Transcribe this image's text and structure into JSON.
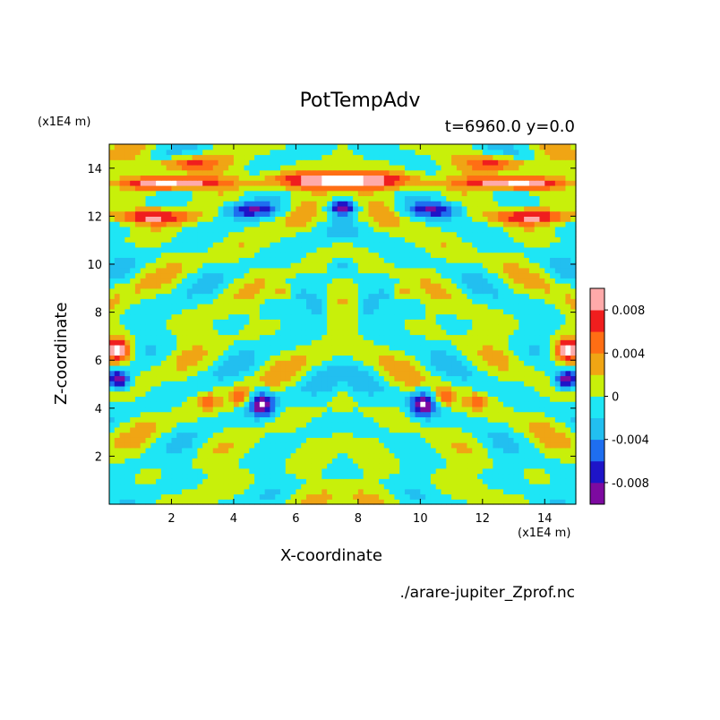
{
  "chart_data": {
    "type": "heatmap",
    "title": "PotTempAdv",
    "subtitle": "t=6960.0 y=0.0",
    "xlabel": "X-coordinate",
    "ylabel": "Z-coordinate",
    "x_unit": "(x1E4 m)",
    "y_unit": "(x1E4 m)",
    "source_file": "./arare-jupiter_Zprof.nc",
    "xlim": [
      0,
      15
    ],
    "ylim": [
      0,
      15
    ],
    "x_ticks": [
      2,
      4,
      6,
      8,
      10,
      12,
      14
    ],
    "y_ticks": [
      2,
      4,
      6,
      8,
      10,
      12,
      14
    ],
    "colorbar": {
      "levels": [
        -0.01,
        -0.008,
        -0.006,
        -0.004,
        -0.002,
        0,
        0.002,
        0.004,
        0.006,
        0.008,
        0.01
      ],
      "colors": [
        "#7d0aa0",
        "#1e14c8",
        "#1e6ef0",
        "#22bff0",
        "#1ee6f5",
        "#c8f00a",
        "#f0a514",
        "#ff6e14",
        "#f01e1e",
        "#ffaaaa"
      ],
      "tick_labels": [
        "0.008",
        "0.004",
        "0",
        "-0.004",
        "-0.008"
      ],
      "tick_values": [
        0.008,
        0.004,
        0,
        -0.004,
        -0.008
      ]
    },
    "features": [
      {
        "x": 7.5,
        "z": 13.5,
        "value": 0.012,
        "rx": 2.2,
        "rz": 0.35
      },
      {
        "x": 2.0,
        "z": 13.4,
        "value": 0.011,
        "rx": 1.6,
        "rz": 0.25
      },
      {
        "x": 13.0,
        "z": 13.4,
        "value": 0.011,
        "rx": 1.6,
        "rz": 0.25
      },
      {
        "x": 1.3,
        "z": 12.0,
        "value": 0.009,
        "rx": 1.2,
        "rz": 0.3
      },
      {
        "x": 13.7,
        "z": 12.0,
        "value": 0.009,
        "rx": 1.2,
        "rz": 0.3
      },
      {
        "x": 2.4,
        "z": 14.2,
        "value": 0.007,
        "rx": 1.0,
        "rz": 0.3
      },
      {
        "x": 12.6,
        "z": 14.2,
        "value": 0.007,
        "rx": 1.0,
        "rz": 0.3
      },
      {
        "x": 4.5,
        "z": 12.3,
        "value": -0.006,
        "rx": 0.9,
        "rz": 0.3
      },
      {
        "x": 10.5,
        "z": 12.3,
        "value": -0.006,
        "rx": 0.9,
        "rz": 0.3
      },
      {
        "x": 7.5,
        "z": 12.4,
        "value": -0.009,
        "rx": 0.5,
        "rz": 0.3
      },
      {
        "x": 0.3,
        "z": 6.4,
        "value": 0.01,
        "rx": 0.4,
        "rz": 0.5
      },
      {
        "x": 14.7,
        "z": 6.4,
        "value": 0.01,
        "rx": 0.4,
        "rz": 0.5
      },
      {
        "x": 0.3,
        "z": 5.2,
        "value": -0.01,
        "rx": 0.35,
        "rz": 0.4
      },
      {
        "x": 14.7,
        "z": 5.2,
        "value": -0.01,
        "rx": 0.35,
        "rz": 0.4
      },
      {
        "x": 4.9,
        "z": 4.2,
        "value": -0.01,
        "rx": 0.4,
        "rz": 0.5
      },
      {
        "x": 10.1,
        "z": 4.2,
        "value": -0.01,
        "rx": 0.4,
        "rz": 0.5
      },
      {
        "x": 4.2,
        "z": 4.5,
        "value": 0.005,
        "rx": 0.3,
        "rz": 0.4
      },
      {
        "x": 10.8,
        "z": 4.5,
        "value": 0.005,
        "rx": 0.3,
        "rz": 0.4
      },
      {
        "x": 3.2,
        "z": 4.3,
        "value": 0.004,
        "rx": 0.3,
        "rz": 0.3
      },
      {
        "x": 11.8,
        "z": 4.3,
        "value": 0.004,
        "rx": 0.3,
        "rz": 0.3
      },
      {
        "x": 6.7,
        "z": 8.3,
        "value": -0.005,
        "rx": 0.3,
        "rz": 0.4
      },
      {
        "x": 8.3,
        "z": 8.3,
        "value": -0.005,
        "rx": 0.3,
        "rz": 0.4
      },
      {
        "x": 5.6,
        "z": 8.8,
        "value": 0.004,
        "rx": 0.3,
        "rz": 0.3
      },
      {
        "x": 9.4,
        "z": 8.8,
        "value": 0.004,
        "rx": 0.3,
        "rz": 0.3
      },
      {
        "x": 7.5,
        "z": 10.0,
        "value": -0.004,
        "rx": 0.4,
        "rz": 0.3
      }
    ]
  }
}
